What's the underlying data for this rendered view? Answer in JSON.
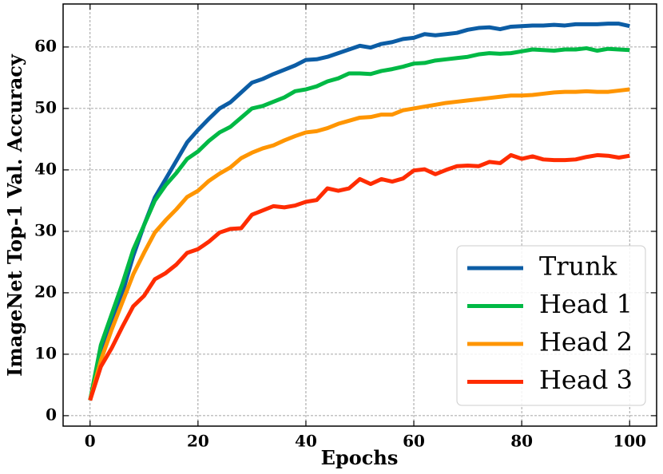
{
  "chart_data": {
    "type": "line",
    "xlabel": "Epochs",
    "ylabel": "ImageNet Top-1 Val. Accuracy",
    "x": [
      0,
      2,
      4,
      6,
      8,
      10,
      12,
      14,
      16,
      18,
      20,
      22,
      24,
      26,
      28,
      30,
      32,
      34,
      36,
      38,
      40,
      42,
      44,
      46,
      48,
      50,
      52,
      54,
      56,
      58,
      60,
      62,
      64,
      66,
      68,
      70,
      72,
      74,
      76,
      78,
      80,
      82,
      84,
      86,
      88,
      90,
      92,
      94,
      96,
      98,
      100
    ],
    "series": [
      {
        "name": "Trunk",
        "color": "#0C5DA5",
        "values": [
          2.5,
          10,
          15,
          20,
          26,
          31,
          35.5,
          38.5,
          41.5,
          44.5,
          46.5,
          48.3,
          50,
          51,
          52.6,
          54.2,
          54.8,
          55.6,
          56.3,
          57,
          57.9,
          58,
          58.4,
          59,
          59.6,
          60.2,
          59.9,
          60.5,
          60.8,
          61.3,
          61.5,
          62.1,
          61.9,
          62.1,
          62.3,
          62.8,
          63.1,
          63.2,
          62.9,
          63.3,
          63.4,
          63.5,
          63.5,
          63.6,
          63.5,
          63.7,
          63.7,
          63.7,
          63.8,
          63.8,
          63.4
        ]
      },
      {
        "name": "Head 1",
        "color": "#00B945",
        "values": [
          2.5,
          11.5,
          16.5,
          21.5,
          27,
          31,
          35,
          37.5,
          39.5,
          41.8,
          43,
          44.7,
          46.1,
          47,
          48.5,
          50,
          50.4,
          51.1,
          51.8,
          52.8,
          53.1,
          53.6,
          54.4,
          54.9,
          55.7,
          55.7,
          55.6,
          56.1,
          56.4,
          56.8,
          57.3,
          57.4,
          57.8,
          58,
          58.2,
          58.4,
          58.8,
          59,
          58.9,
          59,
          59.3,
          59.6,
          59.5,
          59.4,
          59.6,
          59.6,
          59.8,
          59.4,
          59.7,
          59.6,
          59.5
        ]
      },
      {
        "name": "Head 2",
        "color": "#FF9500",
        "values": [
          2.5,
          9,
          14,
          18.5,
          23,
          26.5,
          29.8,
          31.8,
          33.6,
          35.6,
          36.6,
          38.2,
          39.4,
          40.4,
          41.9,
          42.8,
          43.5,
          44,
          44.8,
          45.5,
          46.1,
          46.3,
          46.8,
          47.5,
          48,
          48.5,
          48.6,
          49,
          49,
          49.7,
          50,
          50.3,
          50.6,
          50.9,
          51.1,
          51.3,
          51.5,
          51.7,
          51.9,
          52.1,
          52.1,
          52.2,
          52.4,
          52.6,
          52.7,
          52.7,
          52.8,
          52.7,
          52.7,
          52.9,
          53.1
        ]
      },
      {
        "name": "Head 3",
        "color": "#FF2C00",
        "values": [
          2.5,
          8,
          11,
          14.5,
          17.8,
          19.5,
          22.2,
          23.2,
          24.6,
          26.5,
          27.1,
          28.3,
          29.8,
          30.4,
          30.5,
          32.7,
          33.4,
          34.1,
          33.9,
          34.2,
          34.8,
          35.1,
          37,
          36.6,
          37,
          38.5,
          37.7,
          38.5,
          38.1,
          38.6,
          39.9,
          40.1,
          39.3,
          40,
          40.6,
          40.7,
          40.6,
          41.3,
          41.1,
          42.4,
          41.8,
          42.2,
          41.7,
          41.6,
          41.6,
          41.7,
          42.1,
          42.4,
          42.3,
          42,
          42.3
        ]
      }
    ],
    "xlim": [
      -5,
      105
    ],
    "ylim": [
      -1.7,
      67
    ],
    "xticks": [
      0,
      20,
      40,
      60,
      80,
      100
    ],
    "yticks": [
      0,
      10,
      20,
      30,
      40,
      50,
      60
    ],
    "grid": true,
    "legend": "lower right"
  }
}
